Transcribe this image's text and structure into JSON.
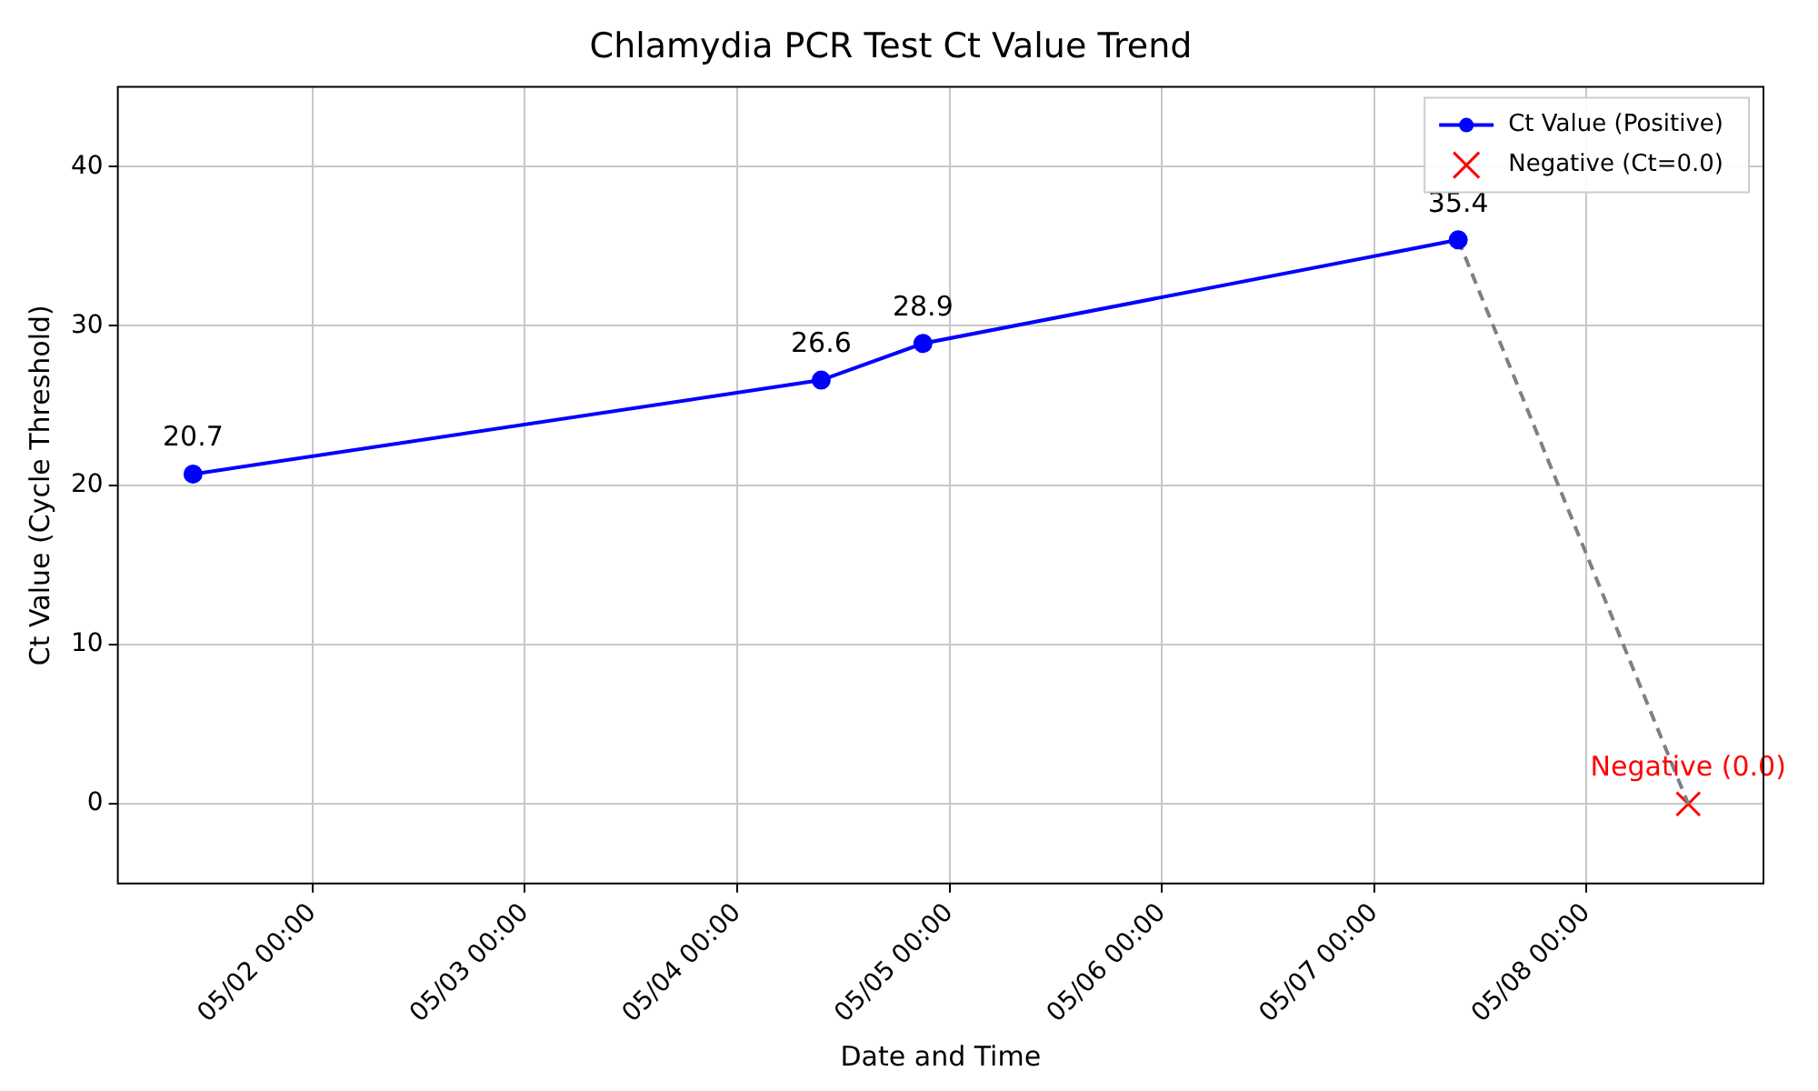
{
  "chart_data": {
    "type": "line",
    "title": "Chlamydia PCR Test Ct Value Trend",
    "xlabel": "Date and Time",
    "ylabel": "Ct Value (Cycle Threshold)",
    "series": [
      {
        "name": "Ct Value (Positive)",
        "color": "#0000ff",
        "type": "line",
        "marker": "circle",
        "line_style": "solid",
        "x": [
          "--05-01T10:30",
          "--05-04T09:30",
          "--05-04T21:00",
          "--05-07T09:30"
        ],
        "values": [
          20.7,
          26.6,
          28.9,
          35.4
        ],
        "value_labels": [
          "20.7",
          "26.6",
          "28.9",
          "35.4"
        ]
      },
      {
        "color": "#808080",
        "type": "line",
        "marker": "none",
        "line_style": "dashed",
        "x": [
          "--05-07T09:30",
          "--05-08T11:30"
        ],
        "values": [
          35.4,
          0
        ]
      },
      {
        "name": "Negative (Ct=0.0)",
        "color": "#ff0000",
        "type": "scatter",
        "marker": "cross",
        "x": [
          "--05-08T11:30"
        ],
        "values": [
          0
        ],
        "value_labels": [
          "Negative (0.0)"
        ]
      }
    ],
    "xlim": [
      "--05-01T02:00",
      "--05-08T20:00"
    ],
    "xticks": [
      {
        "value": "--05-02T00:00",
        "label": "05/02 00:00"
      },
      {
        "value": "--05-03T00:00",
        "label": "05/03 00:00"
      },
      {
        "value": "--05-04T00:00",
        "label": "05/04 00:00"
      },
      {
        "value": "--05-05T00:00",
        "label": "05/05 00:00"
      },
      {
        "value": "--05-06T00:00",
        "label": "05/06 00:00"
      },
      {
        "value": "--05-07T00:00",
        "label": "05/07 00:00"
      },
      {
        "value": "--05-08T00:00",
        "label": "05/08 00:00"
      }
    ],
    "ylim": [
      -5,
      45
    ],
    "yticks": [
      0,
      10,
      20,
      30,
      40
    ],
    "grid": true,
    "legend": "top right"
  }
}
